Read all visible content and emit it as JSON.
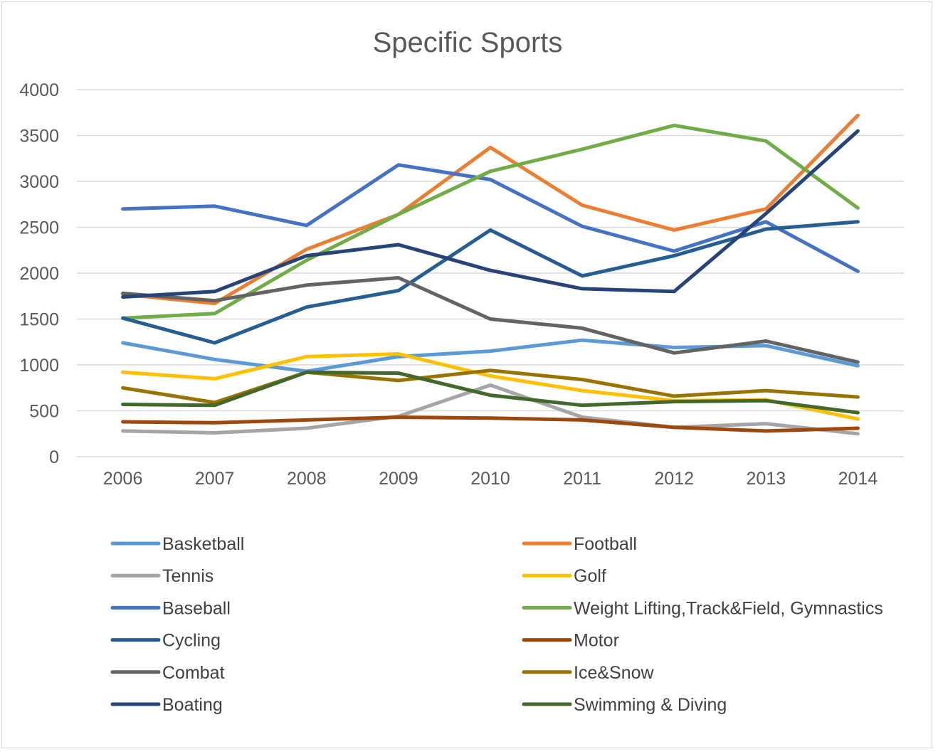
{
  "chart_data": {
    "type": "line",
    "title": "Specific Sports",
    "xlabel": "",
    "ylabel": "",
    "categories": [
      "2006",
      "2007",
      "2008",
      "2009",
      "2010",
      "2011",
      "2012",
      "2013",
      "2014"
    ],
    "ylim": [
      0,
      4000
    ],
    "yticks": [
      "0",
      "500",
      "1000",
      "1500",
      "2000",
      "2500",
      "3000",
      "3500",
      "4000"
    ],
    "grid": true,
    "legend_position": "bottom",
    "series": [
      {
        "name": "Basketball",
        "color": "#5B9BD5",
        "values": [
          1240,
          1060,
          930,
          1090,
          1150,
          1270,
          1190,
          1210,
          990
        ]
      },
      {
        "name": "Football",
        "color": "#ED7D31",
        "values": [
          1770,
          1670,
          2260,
          2640,
          3370,
          2740,
          2470,
          2700,
          3720
        ]
      },
      {
        "name": "Tennis",
        "color": "#A5A5A5",
        "values": [
          280,
          260,
          310,
          440,
          780,
          430,
          320,
          360,
          250
        ]
      },
      {
        "name": "Golf",
        "color": "#FFC000",
        "values": [
          920,
          850,
          1090,
          1120,
          880,
          720,
          610,
          620,
          410
        ]
      },
      {
        "name": "Baseball",
        "color": "#4472C4",
        "values": [
          2700,
          2730,
          2520,
          3180,
          3020,
          2510,
          2240,
          2560,
          2020
        ]
      },
      {
        "name": "Weight Lifting,Track&Field, Gymnastics",
        "color": "#70AD47",
        "values": [
          1510,
          1560,
          2140,
          2640,
          3110,
          3350,
          3610,
          3440,
          2710
        ]
      },
      {
        "name": "Cycling",
        "color": "#255E91",
        "values": [
          1510,
          1240,
          1630,
          1810,
          2470,
          1970,
          2190,
          2480,
          2560
        ]
      },
      {
        "name": "Motor",
        "color": "#9E480E",
        "values": [
          380,
          370,
          400,
          430,
          420,
          400,
          320,
          280,
          310
        ]
      },
      {
        "name": "Combat",
        "color": "#636363",
        "values": [
          1780,
          1700,
          1870,
          1950,
          1500,
          1400,
          1130,
          1260,
          1030
        ]
      },
      {
        "name": "Ice&Snow",
        "color": "#997300",
        "values": [
          750,
          590,
          920,
          830,
          940,
          840,
          660,
          720,
          650
        ]
      },
      {
        "name": "Boating",
        "color": "#264478",
        "values": [
          1740,
          1800,
          2190,
          2310,
          2030,
          1830,
          1800,
          2650,
          3550
        ]
      },
      {
        "name": "Swimming & Diving",
        "color": "#43682B",
        "values": [
          570,
          560,
          920,
          910,
          670,
          560,
          600,
          610,
          480
        ]
      }
    ]
  }
}
